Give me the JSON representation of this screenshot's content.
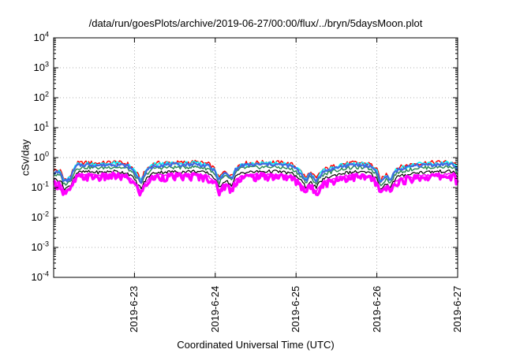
{
  "chart_data": {
    "type": "line",
    "title": "/data/run/goesPlots/archive/2019-06-27/00:00/flux/../bryn/5daysMoon.plot",
    "xlabel": "Coordinated Universal Time (UTC)",
    "ylabel": "cSv/day",
    "y_scale": "log",
    "ylim": [
      0.0001,
      10000
    ],
    "y_ticks": [
      {
        "base": "10",
        "exp": "-4",
        "value": 0.0001
      },
      {
        "base": "10",
        "exp": "-3",
        "value": 0.001
      },
      {
        "base": "10",
        "exp": "-2",
        "value": 0.01
      },
      {
        "base": "10",
        "exp": "-1",
        "value": 0.1
      },
      {
        "base": "10",
        "exp": "0",
        "value": 1
      },
      {
        "base": "10",
        "exp": "1",
        "value": 10
      },
      {
        "base": "10",
        "exp": "2",
        "value": 100
      },
      {
        "base": "10",
        "exp": "3",
        "value": 1000
      },
      {
        "base": "10",
        "exp": "4",
        "value": 10000
      }
    ],
    "xlim": [
      "2019-06-22T00:00",
      "2019-06-27T00:00"
    ],
    "x_ticks": [
      "2019-6-23",
      "2019-6-24",
      "2019-6-25",
      "2019-6-26",
      "2019-6-27"
    ],
    "grid": true,
    "legend": "none",
    "time_profile": {
      "x": [
        "2019-06-22T00:00",
        "2019-06-22T02:00",
        "2019-06-22T03:00",
        "2019-06-22T05:00",
        "2019-06-22T07:00",
        "2019-06-22T10:00",
        "2019-06-22T14:00",
        "2019-06-22T18:00",
        "2019-06-22T22:00",
        "2019-06-23T01:00",
        "2019-06-23T02:00",
        "2019-06-23T04:00",
        "2019-06-23T06:00",
        "2019-06-23T10:00",
        "2019-06-23T14:00",
        "2019-06-23T18:00",
        "2019-06-23T22:00",
        "2019-06-24T00:00",
        "2019-06-24T01:00",
        "2019-06-24T03:00",
        "2019-06-24T05:00",
        "2019-06-24T06:00",
        "2019-06-24T08:00",
        "2019-06-24T12:00",
        "2019-06-24T17:00",
        "2019-06-24T21:00",
        "2019-06-24T23:00",
        "2019-06-25T01:00",
        "2019-06-25T03:00",
        "2019-06-25T04:00",
        "2019-06-25T06:00",
        "2019-06-25T08:00",
        "2019-06-25T14:00",
        "2019-06-25T18:00",
        "2019-06-25T22:00",
        "2019-06-26T00:00",
        "2019-06-26T01:00",
        "2019-06-26T03:00",
        "2019-06-26T04:00",
        "2019-06-26T06:00",
        "2019-06-26T12:00",
        "2019-06-26T16:00",
        "2019-06-26T20:00",
        "2019-06-26T23:00",
        "2019-06-27T00:00"
      ],
      "relative_level": [
        0.6,
        0.55,
        0.28,
        0.35,
        1.0,
        1.05,
        1.0,
        1.1,
        0.95,
        0.4,
        0.28,
        0.7,
        1.0,
        1.05,
        1.05,
        1.1,
        0.95,
        0.6,
        0.3,
        0.55,
        0.35,
        0.7,
        1.0,
        1.05,
        1.1,
        1.0,
        0.9,
        0.6,
        0.3,
        0.5,
        0.3,
        0.6,
        0.95,
        1.05,
        0.95,
        0.6,
        0.25,
        0.45,
        0.3,
        0.7,
        1.0,
        1.05,
        1.1,
        1.05,
        0.65
      ]
    },
    "series": [
      {
        "color": "#ff0000",
        "peak": 0.65,
        "spread": 0.16,
        "width": 1.5
      },
      {
        "color": "#00ffff",
        "peak": 0.6,
        "spread": 0.15,
        "width": 1.5
      },
      {
        "color": "#2e8b57",
        "peak": 0.45,
        "spread": 0.13,
        "width": 1.5
      },
      {
        "color": "#000000",
        "peak": 0.32,
        "spread": 0.12,
        "width": 1.2
      },
      {
        "color": "#ff00ff",
        "peak": 0.25,
        "spread": 0.1,
        "width": 1.5
      },
      {
        "color": "#ff00ff",
        "peak": 0.22,
        "spread": 0.3,
        "width": 3.5
      },
      {
        "color": "#4169e1",
        "peak": 0.55,
        "spread": 0.13,
        "width": 2.2
      }
    ]
  }
}
